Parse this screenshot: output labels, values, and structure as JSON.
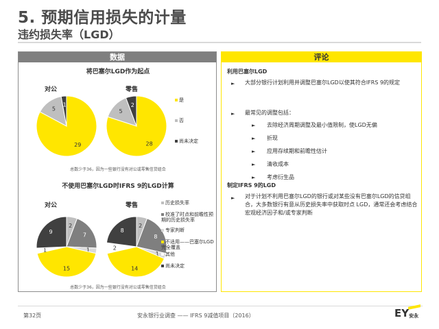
{
  "slide": {
    "title": "5. 预期信用损失的计量",
    "subtitle": "违约损失率（LGD）",
    "left_header": "数据",
    "right_header": "评论",
    "footer_left": "第32页",
    "footer_center": "安永银行业调查 —— IFRS 9减值项目（2016）",
    "logo": "EY",
    "logo_sub": "安永"
  },
  "left": {
    "section1_title": "将巴塞尔LGD作为起点",
    "section1_note": "总数少于36，因为一些银行没有对公或零售信贷组合",
    "section2_title": "不使用巴塞尔LGD时IFRS 9的LGD计算",
    "section2_note": "总数少于36，因为一些银行没有对公或零售信贷组合",
    "legend1": [
      {
        "label": "是",
        "color": "#ffe600"
      },
      {
        "label": "否",
        "color": "#bfbfbf"
      },
      {
        "label": "尚未决定",
        "color": "#404040"
      }
    ],
    "legend2": [
      {
        "label": "历史损失率",
        "color": "#bfbfbf"
      },
      {
        "label": "校准了时点和前瞻性预期的历史损失率",
        "color": "#7f7f7f"
      },
      {
        "label": "专家判断",
        "color": "#d9d9d9"
      },
      {
        "label": "不适用——巴塞尔LGD完全覆盖",
        "color": "#ffe600"
      },
      {
        "label": "其他",
        "color": "#ffffff"
      },
      {
        "label": "尚未决定",
        "color": "#404040"
      }
    ]
  },
  "chart_data": [
    {
      "type": "pie",
      "title": "对公",
      "group": "将巴塞尔LGD作为起点",
      "series": [
        {
          "name": "是",
          "value": 29,
          "color": "#ffe600"
        },
        {
          "name": "否",
          "value": 5,
          "color": "#bfbfbf"
        },
        {
          "name": "尚未决定",
          "value": 1,
          "color": "#404040"
        }
      ]
    },
    {
      "type": "pie",
      "title": "零售",
      "group": "将巴塞尔LGD作为起点",
      "series": [
        {
          "name": "是",
          "value": 28,
          "color": "#ffe600"
        },
        {
          "name": "否",
          "value": 5,
          "color": "#bfbfbf"
        },
        {
          "name": "尚未决定",
          "value": 2,
          "color": "#404040"
        }
      ]
    },
    {
      "type": "pie",
      "title": "对公",
      "group": "不使用巴塞尔LGD时IFRS 9的LGD计算",
      "series": [
        {
          "name": "历史损失率",
          "value": 2,
          "color": "#bfbfbf"
        },
        {
          "name": "校准了时点和前瞻性预期的历史损失率",
          "value": 7,
          "color": "#7f7f7f"
        },
        {
          "name": "专家判断",
          "value": 1,
          "color": "#d9d9d9"
        },
        {
          "name": "不适用——巴塞尔LGD完全覆盖",
          "value": 15,
          "color": "#ffe600"
        },
        {
          "name": "其他",
          "value": 1,
          "color": "#ffffff"
        },
        {
          "name": "尚未决定",
          "value": 9,
          "color": "#404040"
        }
      ]
    },
    {
      "type": "pie",
      "title": "零售",
      "group": "不使用巴塞尔LGD时IFRS 9的LGD计算",
      "series": [
        {
          "name": "历史损失率",
          "value": 2,
          "color": "#bfbfbf"
        },
        {
          "name": "校准了时点和前瞻性预期的历史损失率",
          "value": 8,
          "color": "#7f7f7f"
        },
        {
          "name": "专家判断",
          "value": 1,
          "color": "#d9d9d9"
        },
        {
          "name": "不适用——巴塞尔LGD完全覆盖",
          "value": 14,
          "color": "#ffe600"
        },
        {
          "name": "其他",
          "value": 2,
          "color": "#ffffff"
        },
        {
          "name": "尚未决定",
          "value": 8,
          "color": "#404040"
        }
      ]
    }
  ],
  "right": {
    "h1": "利用巴塞尔LGD",
    "p1": "大部分银行计划利用并调整巴塞尔LGD以使其符合IFRS 9的规定",
    "p2": "最常见的调整包括：",
    "items": [
      "去除经济周期调整及最小值限制，使LGD无偏",
      "折现",
      "应用存续期和前瞻性估计",
      "清收成本",
      "考虑衍生品"
    ],
    "h2": "制定IFRS 9的LGD",
    "p3": "对于计划不利用巴塞尔LGD的银行或对某些没有巴塞尔LGD的信贷组合，大多数银行有意从历史损失率中获取时点 LGD，通常还会考虑结合宏观经济因子和/或专家判断"
  }
}
